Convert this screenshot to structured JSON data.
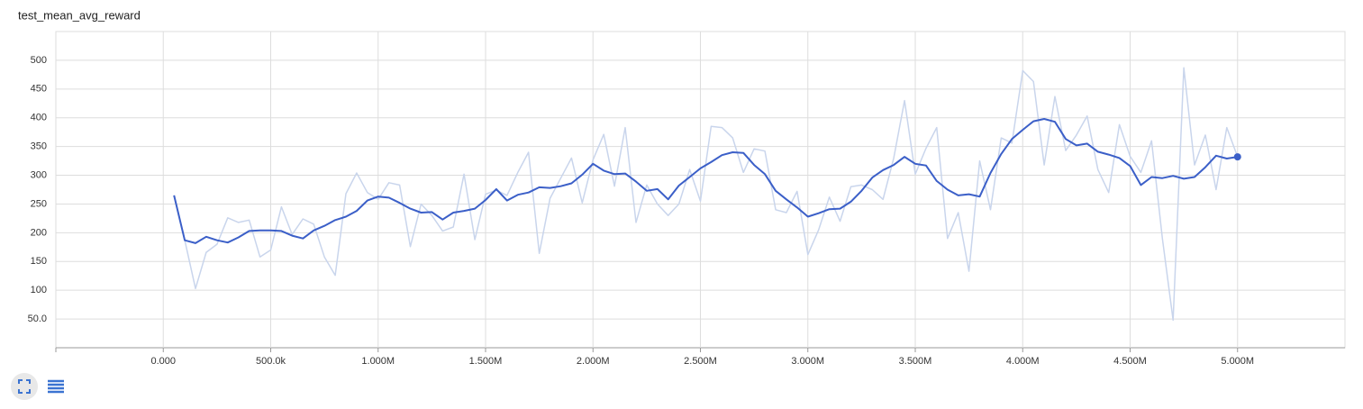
{
  "chart_data": {
    "type": "line",
    "title": "test_mean_avg_reward",
    "x": [
      50000,
      100000,
      150000,
      200000,
      250000,
      300000,
      350000,
      400000,
      450000,
      500000,
      550000,
      600000,
      650000,
      700000,
      750000,
      800000,
      850000,
      900000,
      950000,
      1000000,
      1050000,
      1100000,
      1150000,
      1200000,
      1250000,
      1300000,
      1350000,
      1400000,
      1450000,
      1500000,
      1550000,
      1600000,
      1650000,
      1700000,
      1750000,
      1800000,
      1850000,
      1900000,
      1950000,
      2000000,
      2050000,
      2100000,
      2150000,
      2200000,
      2250000,
      2300000,
      2350000,
      2400000,
      2450000,
      2500000,
      2550000,
      2600000,
      2650000,
      2700000,
      2750000,
      2800000,
      2850000,
      2900000,
      2950000,
      3000000,
      3050000,
      3100000,
      3150000,
      3200000,
      3250000,
      3300000,
      3350000,
      3400000,
      3450000,
      3500000,
      3550000,
      3600000,
      3650000,
      3700000,
      3750000,
      3800000,
      3850000,
      3900000,
      3950000,
      4000000,
      4050000,
      4100000,
      4150000,
      4200000,
      4250000,
      4300000,
      4350000,
      4400000,
      4450000,
      4500000,
      4550000,
      4600000,
      4650000,
      4700000,
      4750000,
      4800000,
      4850000,
      4900000,
      4950000,
      5000000
    ],
    "series": [
      {
        "color": "#c9d5ec",
        "values": [
          265,
          187,
          103,
          166,
          180,
          226,
          218,
          222,
          158,
          170,
          245,
          197,
          224,
          215,
          158,
          126,
          268,
          304,
          270,
          258,
          287,
          283,
          176,
          250,
          230,
          203,
          210,
          302,
          188,
          267,
          274,
          265,
          305,
          340,
          164,
          260,
          295,
          330,
          252,
          327,
          371,
          281,
          383,
          218,
          283,
          250,
          230,
          250,
          310,
          255,
          385,
          383,
          365,
          305,
          346,
          342,
          240,
          235,
          272,
          162,
          205,
          262,
          220,
          280,
          283,
          275,
          258,
          330,
          430,
          302,
          347,
          383,
          190,
          235,
          133,
          325,
          240,
          365,
          356,
          482,
          463,
          318,
          437,
          343,
          370,
          403,
          310,
          270,
          388,
          333,
          305,
          360,
          190,
          48,
          487,
          318,
          370,
          275,
          383,
          332
        ]
      },
      {
        "color": "#3b5fc8",
        "values": [
          265,
          187,
          182,
          193,
          187,
          183,
          192,
          203,
          204,
          204,
          203,
          195,
          190,
          204,
          212,
          222,
          228,
          238,
          256,
          263,
          261,
          252,
          242,
          235,
          236,
          223,
          235,
          238,
          242,
          257,
          276,
          256,
          266,
          270,
          279,
          278,
          281,
          286,
          301,
          320,
          308,
          302,
          303,
          289,
          273,
          276,
          258,
          282,
          297,
          312,
          323,
          335,
          340,
          339,
          318,
          302,
          273,
          258,
          244,
          228,
          234,
          241,
          242,
          254,
          273,
          296,
          309,
          318,
          332,
          320,
          317,
          290,
          275,
          265,
          267,
          263,
          304,
          337,
          363,
          379,
          394,
          398,
          393,
          363,
          352,
          355,
          341,
          336,
          330,
          316,
          283,
          297,
          295,
          299,
          294,
          297,
          314,
          334,
          329,
          332
        ]
      }
    ],
    "xlim": [
      -500000,
      5500000
    ],
    "ylim": [
      0,
      550
    ],
    "xticks": [
      {
        "value": 0,
        "label": "0.000"
      },
      {
        "value": 500000,
        "label": "500.0k"
      },
      {
        "value": 1000000,
        "label": "1.000M"
      },
      {
        "value": 1500000,
        "label": "1.500M"
      },
      {
        "value": 2000000,
        "label": "2.000M"
      },
      {
        "value": 2500000,
        "label": "2.500M"
      },
      {
        "value": 3000000,
        "label": "3.000M"
      },
      {
        "value": 3500000,
        "label": "3.500M"
      },
      {
        "value": 4000000,
        "label": "4.000M"
      },
      {
        "value": 4500000,
        "label": "4.500M"
      },
      {
        "value": 5000000,
        "label": "5.000M"
      }
    ],
    "yticks": [
      {
        "value": 50,
        "label": "50.0"
      },
      100,
      150,
      200,
      250,
      300,
      350,
      400,
      450,
      500
    ],
    "grid": true
  }
}
